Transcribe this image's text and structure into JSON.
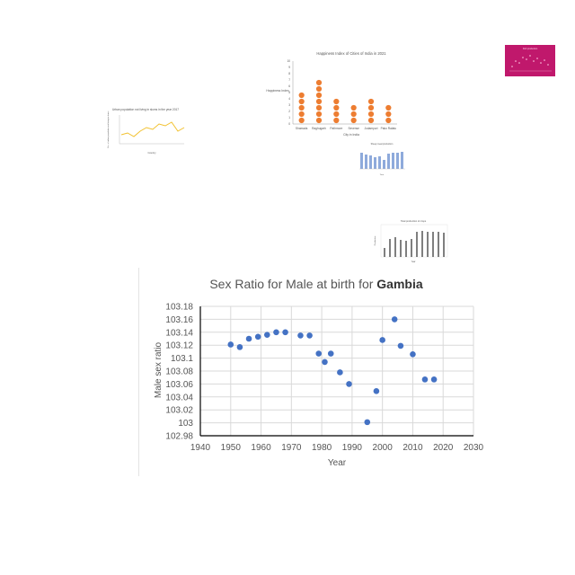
{
  "chart_data": [
    {
      "type": "scatter",
      "title": "Sex Ratio for Male at birth for",
      "title_bold": "Gambia",
      "xlabel": "Year",
      "ylabel": "Male sex ratio",
      "xlim": [
        1940,
        2030
      ],
      "ylim": [
        102.98,
        103.18
      ],
      "x_ticks": [
        "1940",
        "1950",
        "1960",
        "1970",
        "1980",
        "1990",
        "2000",
        "2010",
        "2020",
        "2030"
      ],
      "y_ticks": [
        "102.98",
        "103",
        "103.02",
        "103.04",
        "103.06",
        "103.08",
        "103.1",
        "103.12",
        "103.14",
        "103.16",
        "103.18"
      ],
      "grid": true,
      "marker_color": "#4472c4",
      "points": [
        {
          "x": 1950,
          "y": 103.121
        },
        {
          "x": 1953,
          "y": 103.117
        },
        {
          "x": 1956,
          "y": 103.13
        },
        {
          "x": 1959,
          "y": 103.133
        },
        {
          "x": 1962,
          "y": 103.136
        },
        {
          "x": 1965,
          "y": 103.14
        },
        {
          "x": 1968,
          "y": 103.14
        },
        {
          "x": 1973,
          "y": 103.135
        },
        {
          "x": 1976,
          "y": 103.135
        },
        {
          "x": 1979,
          "y": 103.107
        },
        {
          "x": 1981,
          "y": 103.094
        },
        {
          "x": 1983,
          "y": 103.107
        },
        {
          "x": 1986,
          "y": 103.078
        },
        {
          "x": 1989,
          "y": 103.06
        },
        {
          "x": 1995,
          "y": 103.001
        },
        {
          "x": 1998,
          "y": 103.049
        },
        {
          "x": 2000,
          "y": 103.128
        },
        {
          "x": 2004,
          "y": 103.16
        },
        {
          "x": 2006,
          "y": 103.119
        },
        {
          "x": 2010,
          "y": 103.106
        },
        {
          "x": 2014,
          "y": 103.067
        },
        {
          "x": 2017,
          "y": 103.067
        }
      ]
    },
    {
      "type": "scatter",
      "title": "Happiness Index of Cities of India in 2021",
      "xlabel": "City in India",
      "ylabel": "Happiness Index",
      "ylim": [
        0,
        10
      ],
      "y_ticks": [
        "0",
        "1",
        "2",
        "3",
        "4",
        "5",
        "6",
        "7",
        "8",
        "9",
        "10"
      ],
      "marker_color": "#ed7d31",
      "categories": [
        "Shamads",
        "Raghugarh",
        "Pathmore",
        "Sevense",
        "Jodampuri",
        "Pako Ralatu"
      ],
      "values": [
        5,
        7,
        4,
        3,
        4,
        3
      ]
    },
    {
      "type": "line",
      "title": "Urban population not living in slums in the year 2017",
      "xlabel": "Country",
      "ylabel": "No. of urban population not living in slums",
      "series_color": "#f2c12e"
    },
    {
      "type": "bar",
      "title": "Sheep meat production",
      "xlabel": "Year",
      "series_color": "#8eaadb"
    },
    {
      "type": "bar",
      "title": "Total production of crops",
      "xlabel": "Year",
      "ylabel": "Production",
      "series_color": "#7f7f7f"
    },
    {
      "type": "scatter",
      "title": "Fish production",
      "background": "#c0186c"
    }
  ]
}
